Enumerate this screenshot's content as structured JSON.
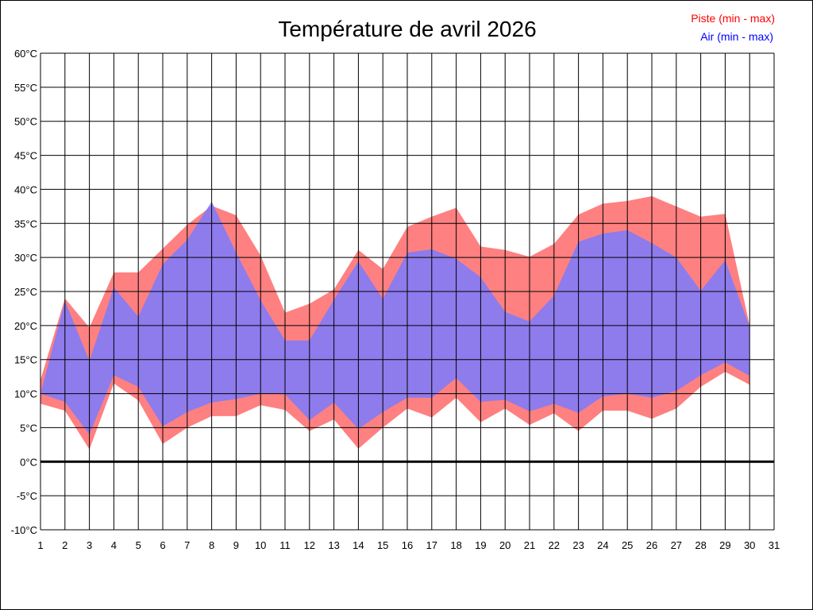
{
  "chart_data": {
    "type": "area",
    "title": "Température de avril 2026",
    "xlabel": "",
    "ylabel": "",
    "x_ticks": [
      "1",
      "2",
      "3",
      "4",
      "5",
      "6",
      "7",
      "8",
      "9",
      "10",
      "11",
      "12",
      "13",
      "14",
      "15",
      "16",
      "17",
      "18",
      "19",
      "20",
      "21",
      "22",
      "23",
      "24",
      "25",
      "26",
      "27",
      "28",
      "29",
      "30",
      "31"
    ],
    "y_ticks": [
      "60°C",
      "55°C",
      "50°C",
      "45°C",
      "40°C",
      "35°C",
      "30°C",
      "25°C",
      "20°C",
      "15°C",
      "10°C",
      "5°C",
      "0°C",
      "-5°C",
      "-10°C"
    ],
    "xlim": [
      1,
      31
    ],
    "ylim": [
      -10,
      60
    ],
    "grid": true,
    "legend_position": "top-right",
    "series": [
      {
        "name": "Piste (min - max)",
        "color": "#ff8080",
        "x": [
          1,
          2,
          3,
          4,
          5,
          6,
          7,
          8,
          9,
          10,
          11,
          12,
          13,
          14,
          15,
          16,
          17,
          18,
          19,
          20,
          21,
          22,
          23,
          24,
          25,
          26,
          27,
          28,
          29,
          30
        ],
        "min": [
          8.5,
          7.5,
          1.8,
          11.5,
          9,
          2.6,
          5,
          6.7,
          6.7,
          8.3,
          7.6,
          4.5,
          6.2,
          1.9,
          5,
          7.8,
          6.5,
          9.4,
          5.8,
          7.8,
          5.4,
          7.1,
          4.5,
          7.5,
          7.5,
          6.3,
          7.8,
          11,
          13.2,
          11.3
        ],
        "max": [
          12,
          24,
          19.7,
          27.8,
          27.8,
          31.3,
          34.8,
          37.6,
          36.2,
          30.3,
          21.9,
          23.2,
          25.3,
          31.1,
          28.3,
          34.5,
          36,
          37.3,
          31.6,
          31.1,
          30.1,
          32,
          36.3,
          37.9,
          38.3,
          39,
          37.5,
          36,
          36.4,
          20
        ]
      },
      {
        "name": "Air (min - max)",
        "color": "#7a7aff",
        "x": [
          1,
          2,
          3,
          4,
          5,
          6,
          7,
          8,
          9,
          10,
          11,
          12,
          13,
          14,
          15,
          16,
          17,
          18,
          19,
          20,
          21,
          22,
          23,
          24,
          25,
          26,
          27,
          28,
          29,
          30
        ],
        "min": [
          10,
          8.8,
          4,
          12.7,
          11,
          5.2,
          7.3,
          8.7,
          9.2,
          10,
          9.9,
          6.1,
          8.7,
          4.8,
          7.3,
          9.4,
          9.4,
          12.3,
          8.8,
          9.1,
          7.4,
          8.5,
          7.2,
          9.6,
          10,
          9.4,
          10.4,
          12.7,
          14.6,
          12.6
        ],
        "max": [
          10,
          23.6,
          14.8,
          25.6,
          21.3,
          29,
          32.6,
          38.2,
          30.7,
          23.7,
          17.8,
          17.8,
          23.8,
          29.4,
          23.9,
          30.7,
          31.2,
          29.8,
          27.1,
          22,
          20.6,
          24.4,
          32.3,
          33.5,
          34,
          32.1,
          30,
          25.1,
          29.6,
          19.8
        ]
      }
    ]
  }
}
